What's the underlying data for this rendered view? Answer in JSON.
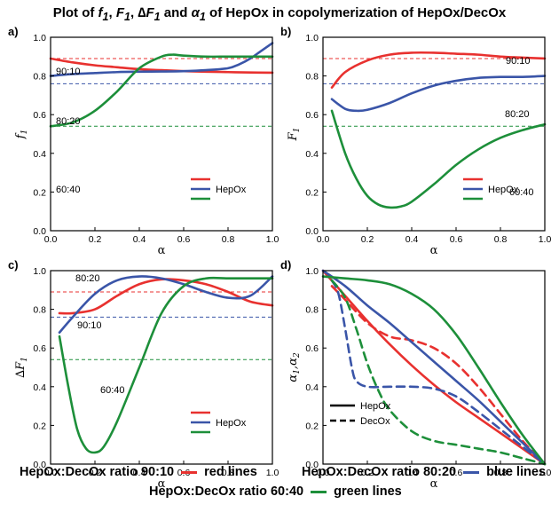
{
  "title": {
    "prefix": "Plot of ",
    "sym_f": "f",
    "sym_F": "F",
    "sym_dF": "∆F",
    "sym_alpha": "α",
    "sub": "1",
    "suffix": " of HepOx in copolymerization of HepOx/DecOx",
    "and": " and",
    "comma": ", "
  },
  "captions": {
    "red": "HepOx:DecOx ratio 90:10",
    "red_suffix": "red lines",
    "blue": "HepOx:DecOx ratio 80:20",
    "blue_suffix": "blue lines",
    "green": "HepOx:DecOx ratio 60:40",
    "green_suffix": "green lines"
  },
  "colors": {
    "red": "#e8312f",
    "blue": "#3a55a8",
    "green": "#1d8f3a",
    "legend_text": "#000000"
  },
  "chart_data": [
    {
      "panel": "a)",
      "type": "line",
      "xlabel": "α",
      "ylabel": "f1",
      "xlim": [
        0.0,
        1.0
      ],
      "ylim": [
        0.0,
        1.0
      ],
      "xticks": [
        "0.0",
        "0.2",
        "0.4",
        "0.6",
        "0.8",
        "1.0"
      ],
      "yticks": [
        "0.0",
        "0.2",
        "0.4",
        "0.6",
        "0.8",
        "1.0"
      ],
      "legend": {
        "label": "HepOx",
        "placement": "lower-right"
      },
      "reference_lines": [
        {
          "y": 0.89,
          "color": "red",
          "style": "dashed"
        },
        {
          "y": 0.76,
          "color": "blue",
          "style": "dashed"
        },
        {
          "y": 0.54,
          "color": "green",
          "style": "dashed"
        }
      ],
      "annotations": [
        "90:10",
        "80:20",
        "60:40"
      ],
      "series": [
        {
          "color": "red",
          "style": "solid",
          "x": [
            0.0,
            0.1,
            0.2,
            0.3,
            0.4,
            0.5,
            0.6,
            0.7,
            0.8,
            0.9,
            1.0
          ],
          "y": [
            0.89,
            0.87,
            0.855,
            0.845,
            0.835,
            0.83,
            0.825,
            0.822,
            0.82,
            0.818,
            0.817
          ]
        },
        {
          "color": "blue",
          "style": "solid",
          "x": [
            0.0,
            0.1,
            0.2,
            0.3,
            0.4,
            0.5,
            0.6,
            0.7,
            0.8,
            0.85,
            0.9,
            0.95,
            1.0
          ],
          "y": [
            0.8,
            0.81,
            0.815,
            0.82,
            0.822,
            0.823,
            0.825,
            0.83,
            0.84,
            0.86,
            0.89,
            0.93,
            0.97
          ]
        },
        {
          "color": "green",
          "style": "solid",
          "x": [
            0.0,
            0.1,
            0.2,
            0.3,
            0.4,
            0.5,
            0.55,
            0.6,
            0.7,
            0.8,
            0.9,
            1.0
          ],
          "y": [
            0.54,
            0.56,
            0.62,
            0.72,
            0.84,
            0.9,
            0.91,
            0.905,
            0.9,
            0.9,
            0.9,
            0.9
          ]
        }
      ]
    },
    {
      "panel": "b)",
      "type": "line",
      "xlabel": "α",
      "ylabel": "F1",
      "xlim": [
        0.0,
        1.0
      ],
      "ylim": [
        0.0,
        1.0
      ],
      "xticks": [
        "0.0",
        "0.2",
        "0.4",
        "0.6",
        "0.8",
        "1.0"
      ],
      "yticks": [
        "0.0",
        "0.2",
        "0.4",
        "0.6",
        "0.8",
        "1.0"
      ],
      "legend": {
        "label": "HepOx",
        "placement": "lower-right"
      },
      "reference_lines": [
        {
          "y": 0.89,
          "color": "red",
          "style": "dashed"
        },
        {
          "y": 0.76,
          "color": "blue",
          "style": "dashed"
        },
        {
          "y": 0.54,
          "color": "green",
          "style": "dashed"
        }
      ],
      "annotations": [
        "90:10",
        "80:20",
        "60:40"
      ],
      "series": [
        {
          "color": "red",
          "style": "solid",
          "x": [
            0.04,
            0.1,
            0.2,
            0.3,
            0.4,
            0.5,
            0.6,
            0.7,
            0.8,
            0.9,
            1.0
          ],
          "y": [
            0.74,
            0.82,
            0.88,
            0.91,
            0.92,
            0.92,
            0.915,
            0.91,
            0.9,
            0.895,
            0.89
          ]
        },
        {
          "color": "blue",
          "style": "solid",
          "x": [
            0.04,
            0.1,
            0.15,
            0.2,
            0.3,
            0.4,
            0.5,
            0.6,
            0.7,
            0.8,
            0.9,
            1.0
          ],
          "y": [
            0.68,
            0.63,
            0.62,
            0.625,
            0.66,
            0.71,
            0.75,
            0.775,
            0.79,
            0.795,
            0.795,
            0.8
          ]
        },
        {
          "color": "green",
          "style": "solid",
          "x": [
            0.04,
            0.1,
            0.15,
            0.2,
            0.25,
            0.3,
            0.35,
            0.4,
            0.5,
            0.6,
            0.7,
            0.8,
            0.9,
            1.0
          ],
          "y": [
            0.62,
            0.4,
            0.27,
            0.18,
            0.135,
            0.12,
            0.125,
            0.15,
            0.24,
            0.34,
            0.42,
            0.48,
            0.52,
            0.55
          ]
        }
      ]
    },
    {
      "panel": "c)",
      "type": "line",
      "xlabel": "α",
      "ylabel": "∆F1",
      "xlim": [
        0.0,
        1.0
      ],
      "ylim": [
        0.0,
        1.0
      ],
      "xticks": [
        "0.0",
        "0.2",
        "0.4",
        "0.6",
        "0.8",
        "1.0"
      ],
      "yticks": [
        "0.0",
        "0.2",
        "0.4",
        "0.6",
        "0.8",
        "1.0"
      ],
      "legend": {
        "label": "HepOx",
        "placement": "lower-right"
      },
      "reference_lines": [
        {
          "y": 0.89,
          "color": "red",
          "style": "dashed"
        },
        {
          "y": 0.76,
          "color": "blue",
          "style": "dashed"
        },
        {
          "y": 0.54,
          "color": "green",
          "style": "dashed"
        }
      ],
      "annotations": [
        "80:20",
        "90:10",
        "60:40"
      ],
      "series": [
        {
          "color": "red",
          "style": "solid",
          "x": [
            0.04,
            0.1,
            0.2,
            0.3,
            0.4,
            0.5,
            0.6,
            0.7,
            0.8,
            0.9,
            1.0
          ],
          "y": [
            0.78,
            0.78,
            0.8,
            0.87,
            0.93,
            0.955,
            0.95,
            0.93,
            0.89,
            0.84,
            0.82
          ]
        },
        {
          "color": "blue",
          "style": "solid",
          "x": [
            0.04,
            0.1,
            0.2,
            0.3,
            0.4,
            0.5,
            0.6,
            0.7,
            0.8,
            0.9,
            1.0
          ],
          "y": [
            0.68,
            0.76,
            0.88,
            0.95,
            0.97,
            0.96,
            0.93,
            0.89,
            0.86,
            0.87,
            0.97
          ]
        },
        {
          "color": "green",
          "style": "solid",
          "x": [
            0.04,
            0.08,
            0.12,
            0.16,
            0.2,
            0.24,
            0.3,
            0.4,
            0.5,
            0.6,
            0.7,
            0.8,
            0.9,
            1.0
          ],
          "y": [
            0.66,
            0.4,
            0.18,
            0.08,
            0.06,
            0.09,
            0.22,
            0.5,
            0.78,
            0.92,
            0.96,
            0.96,
            0.96,
            0.96
          ]
        }
      ]
    },
    {
      "panel": "d)",
      "type": "line",
      "xlabel": "α",
      "ylabel": "α1,α2",
      "xlim": [
        0.0,
        1.0
      ],
      "ylim": [
        0.0,
        1.0
      ],
      "xticks": [
        "0.0",
        "0.2",
        "0.4",
        "0.6",
        "0.8",
        "1.0"
      ],
      "yticks": [
        "0.0",
        "0.2",
        "0.4",
        "0.6",
        "0.8",
        "1.0"
      ],
      "legend": {
        "entries": [
          "HepOx",
          "DecOx"
        ],
        "styles": [
          "solid",
          "dashed"
        ],
        "placement": "lower-left"
      },
      "series": [
        {
          "name": "HepOx",
          "color": "red",
          "style": "solid",
          "x": [
            0.0,
            0.1,
            0.2,
            0.3,
            0.4,
            0.5,
            0.6,
            0.7,
            0.8,
            0.9,
            1.0
          ],
          "y": [
            1.0,
            0.87,
            0.74,
            0.62,
            0.51,
            0.41,
            0.32,
            0.24,
            0.16,
            0.08,
            0.0
          ]
        },
        {
          "name": "DecOx",
          "color": "red",
          "style": "dashed",
          "x": [
            0.04,
            0.1,
            0.2,
            0.3,
            0.4,
            0.5,
            0.6,
            0.7,
            0.8,
            0.9,
            1.0
          ],
          "y": [
            0.92,
            0.85,
            0.73,
            0.66,
            0.64,
            0.6,
            0.52,
            0.4,
            0.26,
            0.12,
            0.0
          ]
        },
        {
          "name": "HepOx",
          "color": "blue",
          "style": "solid",
          "x": [
            0.0,
            0.1,
            0.2,
            0.3,
            0.4,
            0.5,
            0.6,
            0.7,
            0.8,
            0.9,
            1.0
          ],
          "y": [
            1.0,
            0.92,
            0.82,
            0.73,
            0.63,
            0.53,
            0.43,
            0.33,
            0.22,
            0.11,
            0.0
          ]
        },
        {
          "name": "DecOx",
          "color": "blue",
          "style": "dashed",
          "x": [
            0.04,
            0.07,
            0.1,
            0.13,
            0.15,
            0.2,
            0.3,
            0.4,
            0.5,
            0.6,
            0.7,
            0.8,
            0.9,
            1.0
          ],
          "y": [
            0.95,
            0.88,
            0.7,
            0.5,
            0.43,
            0.4,
            0.4,
            0.4,
            0.39,
            0.35,
            0.27,
            0.18,
            0.09,
            0.0
          ]
        },
        {
          "name": "HepOx",
          "color": "green",
          "style": "solid",
          "x": [
            0.0,
            0.1,
            0.2,
            0.3,
            0.4,
            0.5,
            0.6,
            0.7,
            0.8,
            0.9,
            1.0
          ],
          "y": [
            0.97,
            0.96,
            0.95,
            0.93,
            0.88,
            0.8,
            0.67,
            0.5,
            0.32,
            0.15,
            0.0
          ]
        },
        {
          "name": "DecOx",
          "color": "green",
          "style": "dashed",
          "x": [
            0.04,
            0.1,
            0.15,
            0.2,
            0.25,
            0.3,
            0.4,
            0.5,
            0.6,
            0.7,
            0.8,
            0.9,
            1.0
          ],
          "y": [
            0.95,
            0.86,
            0.7,
            0.52,
            0.38,
            0.28,
            0.17,
            0.12,
            0.1,
            0.08,
            0.06,
            0.03,
            0.0
          ]
        }
      ]
    }
  ]
}
